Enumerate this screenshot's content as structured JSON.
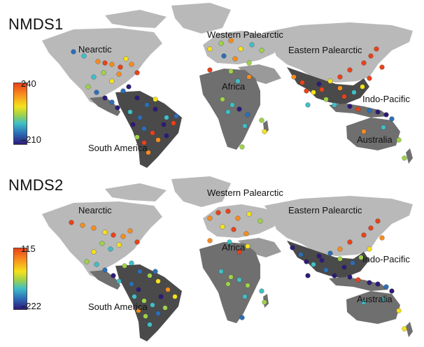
{
  "colors": {
    "background": "#ffffff",
    "land_light": "#b9b9b9",
    "land_dark": "#4a4a4a",
    "land_mid": "#6f6f6f",
    "colormap": [
      "#2e1a78",
      "#2b6fb8",
      "#3fbfc6",
      "#9fd24a",
      "#f5e21c",
      "#f78c1e",
      "#e8421a"
    ]
  },
  "panels": [
    {
      "title": "NMDS1",
      "colorbar": {
        "max": "240",
        "min": "–210"
      },
      "regions": {
        "nearctic": "Nearctic",
        "western_palearctic": "Western Palearctic",
        "eastern_palearctic": "Eastern Palearctic",
        "africa": "Africa",
        "indo_pacific": "Indo-Pacific",
        "south_america": "South America",
        "australia": "Australia"
      }
    },
    {
      "title": "NMDS2",
      "colorbar": {
        "max": "115",
        "min": "–222"
      },
      "regions": {
        "nearctic": "Nearctic",
        "western_palearctic": "Western Palearctic",
        "eastern_palearctic": "Eastern Palearctic",
        "africa": "Africa",
        "indo_pacific": "Indo-Pacific",
        "south_america": "South America",
        "australia": "Australia"
      }
    }
  ]
}
